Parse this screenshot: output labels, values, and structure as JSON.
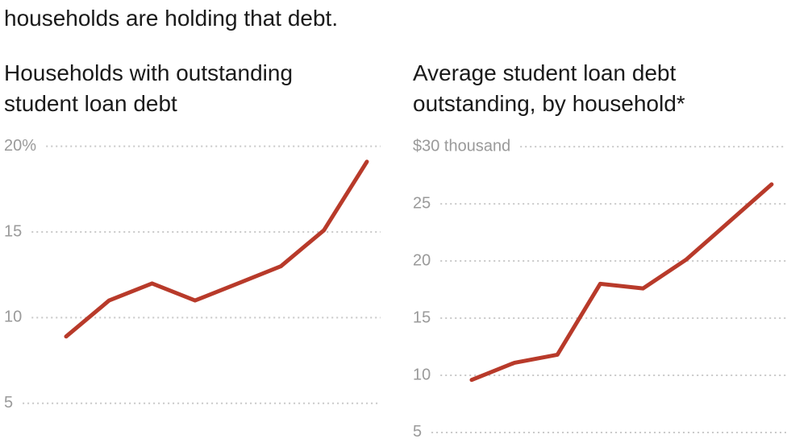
{
  "text": "households are holding that debt.",
  "chart_data": [
    {
      "type": "line",
      "title": [
        "Households with outstanding",
        "student loan debt"
      ],
      "categories": [
        null,
        null,
        null,
        null,
        null,
        null,
        null,
        null
      ],
      "series": [
        {
          "color": "#b83a2a",
          "values": [
            8.9,
            11,
            12,
            11,
            12,
            13,
            15.1,
            19.1
          ]
        }
      ],
      "ylim": [
        2.5,
        20.5
      ],
      "yticks": [
        {
          "value": 20,
          "label": "20%"
        },
        15,
        10,
        5
      ],
      "grid": true
    },
    {
      "type": "line",
      "title": [
        "Average student loan debt",
        "outstanding, by household*"
      ],
      "categories": [
        null,
        null,
        null,
        null,
        null,
        null,
        null,
        null
      ],
      "series": [
        {
          "color": "#b83a2a",
          "values": [
            9.6,
            11.1,
            11.8,
            18,
            17.6,
            20.1,
            23.4,
            26.7
          ]
        }
      ],
      "ylim": [
        3.8,
        30.5
      ],
      "yticks": [
        {
          "value": 30,
          "label": "$30 thousand"
        },
        25,
        20,
        15,
        10,
        5
      ],
      "grid": true
    }
  ]
}
